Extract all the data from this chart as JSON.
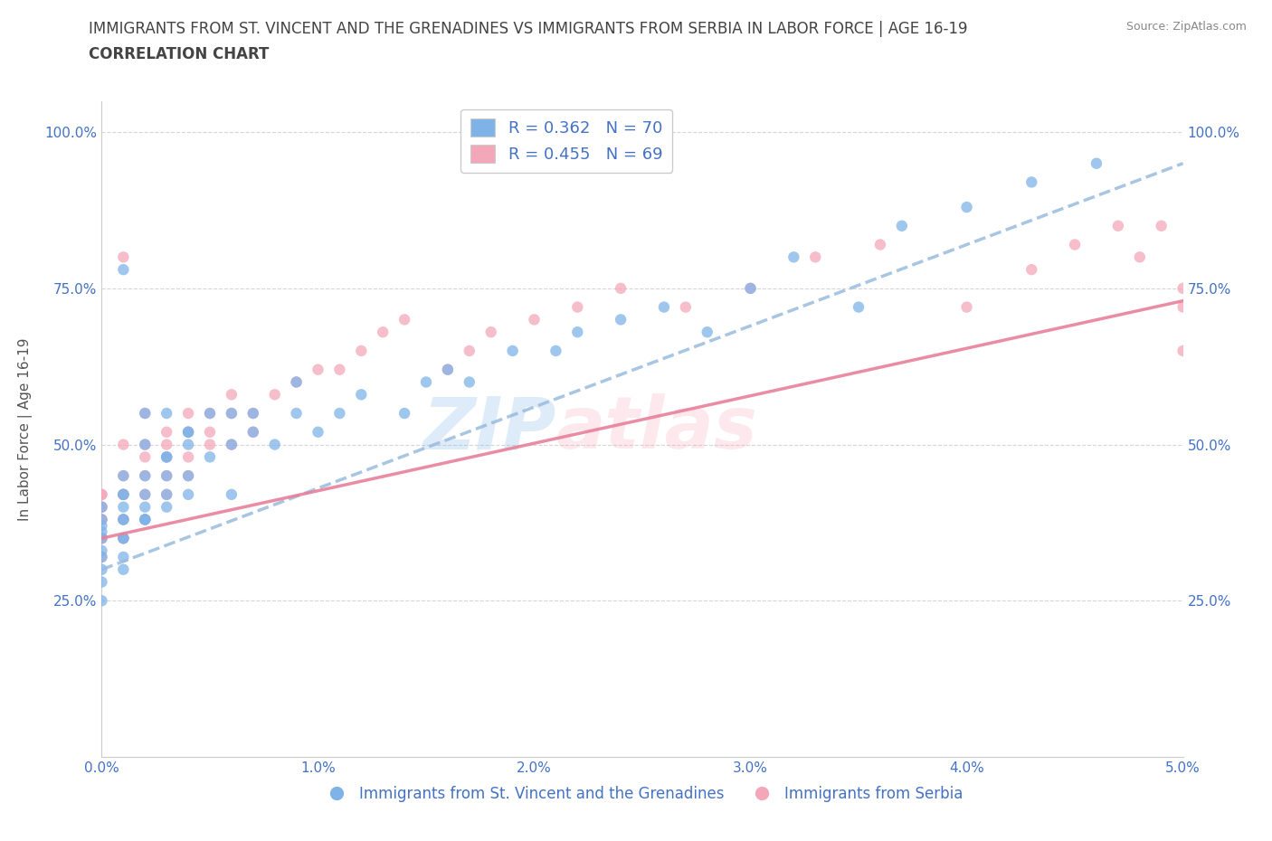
{
  "title_line1": "IMMIGRANTS FROM ST. VINCENT AND THE GRENADINES VS IMMIGRANTS FROM SERBIA IN LABOR FORCE | AGE 16-19",
  "title_line2": "CORRELATION CHART",
  "source_text": "Source: ZipAtlas.com",
  "ylabel": "In Labor Force | Age 16-19",
  "xlim": [
    0.0,
    0.05
  ],
  "ylim": [
    0.0,
    1.05
  ],
  "xtick_labels": [
    "0.0%",
    "1.0%",
    "2.0%",
    "3.0%",
    "4.0%",
    "5.0%"
  ],
  "xtick_values": [
    0.0,
    0.01,
    0.02,
    0.03,
    0.04,
    0.05
  ],
  "ytick_labels": [
    "25.0%",
    "50.0%",
    "75.0%",
    "100.0%"
  ],
  "ytick_values": [
    0.25,
    0.5,
    0.75,
    1.0
  ],
  "legend_R1": "R = 0.362",
  "legend_N1": "N = 70",
  "legend_R2": "R = 0.455",
  "legend_N2": "N = 69",
  "color_blue": "#7fb3e8",
  "color_pink": "#f4a7b9",
  "blue_label": "Immigrants from St. Vincent and the Grenadines",
  "pink_label": "Immigrants from Serbia",
  "blue_line_x": [
    0.0,
    0.05
  ],
  "blue_line_y": [
    0.3,
    0.95
  ],
  "pink_line_x": [
    0.0,
    0.05
  ],
  "pink_line_y": [
    0.35,
    0.73
  ],
  "grid_color": "#cccccc",
  "bg_color": "#ffffff",
  "title_color": "#333333",
  "tick_color": "#4472c4",
  "watermark_color_zip": "#7fb3e8",
  "watermark_color_atlas": "#f4a7b9",
  "blue_scatter_x": [
    0.0,
    0.0,
    0.0,
    0.0,
    0.0,
    0.0,
    0.0,
    0.0,
    0.0,
    0.0,
    0.001,
    0.001,
    0.001,
    0.001,
    0.001,
    0.001,
    0.001,
    0.001,
    0.001,
    0.001,
    0.001,
    0.002,
    0.002,
    0.002,
    0.002,
    0.002,
    0.002,
    0.002,
    0.002,
    0.003,
    0.003,
    0.003,
    0.003,
    0.003,
    0.003,
    0.004,
    0.004,
    0.004,
    0.004,
    0.004,
    0.005,
    0.005,
    0.006,
    0.006,
    0.006,
    0.007,
    0.007,
    0.008,
    0.009,
    0.009,
    0.01,
    0.011,
    0.012,
    0.014,
    0.015,
    0.016,
    0.017,
    0.019,
    0.021,
    0.022,
    0.024,
    0.026,
    0.028,
    0.03,
    0.032,
    0.035,
    0.037,
    0.04,
    0.043,
    0.046
  ],
  "blue_scatter_y": [
    0.36,
    0.33,
    0.38,
    0.4,
    0.35,
    0.37,
    0.32,
    0.3,
    0.28,
    0.25,
    0.35,
    0.32,
    0.38,
    0.3,
    0.42,
    0.35,
    0.42,
    0.45,
    0.38,
    0.4,
    0.78,
    0.38,
    0.4,
    0.38,
    0.45,
    0.5,
    0.38,
    0.42,
    0.55,
    0.4,
    0.42,
    0.48,
    0.55,
    0.45,
    0.48,
    0.42,
    0.5,
    0.52,
    0.45,
    0.52,
    0.48,
    0.55,
    0.5,
    0.55,
    0.42,
    0.52,
    0.55,
    0.5,
    0.55,
    0.6,
    0.52,
    0.55,
    0.58,
    0.55,
    0.6,
    0.62,
    0.6,
    0.65,
    0.65,
    0.68,
    0.7,
    0.72,
    0.68,
    0.75,
    0.8,
    0.72,
    0.85,
    0.88,
    0.92,
    0.95
  ],
  "pink_scatter_x": [
    0.0,
    0.0,
    0.0,
    0.0,
    0.0,
    0.0,
    0.0,
    0.0,
    0.0,
    0.0,
    0.001,
    0.001,
    0.001,
    0.001,
    0.001,
    0.001,
    0.001,
    0.001,
    0.001,
    0.001,
    0.002,
    0.002,
    0.002,
    0.002,
    0.002,
    0.002,
    0.003,
    0.003,
    0.003,
    0.003,
    0.003,
    0.004,
    0.004,
    0.004,
    0.004,
    0.005,
    0.005,
    0.005,
    0.006,
    0.006,
    0.006,
    0.007,
    0.007,
    0.008,
    0.009,
    0.01,
    0.011,
    0.012,
    0.013,
    0.014,
    0.016,
    0.017,
    0.018,
    0.02,
    0.022,
    0.024,
    0.027,
    0.03,
    0.033,
    0.036,
    0.04,
    0.043,
    0.045,
    0.047,
    0.048,
    0.049,
    0.05,
    0.05,
    0.05
  ],
  "pink_scatter_y": [
    0.32,
    0.35,
    0.35,
    0.38,
    0.38,
    0.35,
    0.4,
    0.42,
    0.4,
    0.42,
    0.35,
    0.35,
    0.38,
    0.42,
    0.38,
    0.42,
    0.45,
    0.42,
    0.5,
    0.8,
    0.38,
    0.42,
    0.45,
    0.48,
    0.5,
    0.55,
    0.42,
    0.45,
    0.48,
    0.52,
    0.5,
    0.45,
    0.48,
    0.52,
    0.55,
    0.5,
    0.52,
    0.55,
    0.5,
    0.55,
    0.58,
    0.52,
    0.55,
    0.58,
    0.6,
    0.62,
    0.62,
    0.65,
    0.68,
    0.7,
    0.62,
    0.65,
    0.68,
    0.7,
    0.72,
    0.75,
    0.72,
    0.75,
    0.8,
    0.82,
    0.72,
    0.78,
    0.82,
    0.85,
    0.8,
    0.85,
    0.65,
    0.72,
    0.75
  ]
}
